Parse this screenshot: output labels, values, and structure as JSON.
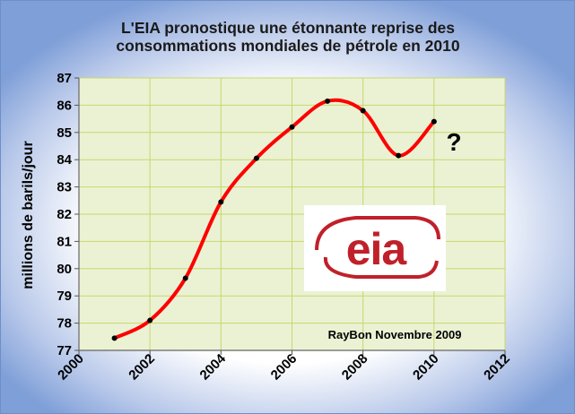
{
  "chart_data": {
    "type": "line",
    "title_lines": [
      "L'EIA pronostique une étonnante reprise des",
      "consommations mondiales de pétrole en 2010"
    ],
    "ylabel": "millions de barils/jour",
    "xlim": [
      2000,
      2012
    ],
    "ylim": [
      77,
      87
    ],
    "x_ticks": [
      "2000",
      "2002",
      "2004",
      "2006",
      "2008",
      "2010",
      "2012"
    ],
    "y_ticks": [
      "77",
      "78",
      "79",
      "80",
      "81",
      "82",
      "83",
      "84",
      "85",
      "86",
      "87"
    ],
    "grid": true,
    "plot_background": "#ebf2d4",
    "grid_color": "#c9d66a",
    "series": [
      {
        "color": "#ff0000",
        "smooth": true,
        "x": [
          2001,
          2002,
          2003,
          2004,
          2005,
          2006,
          2007,
          2008,
          2009,
          2010
        ],
        "y": [
          77.45,
          78.1,
          79.65,
          82.45,
          84.05,
          85.2,
          86.15,
          85.8,
          84.15,
          85.4
        ]
      }
    ],
    "annotations": {
      "question_mark": "?",
      "credit": "RayBon Novembre 2009",
      "logo_text": "eia"
    }
  }
}
